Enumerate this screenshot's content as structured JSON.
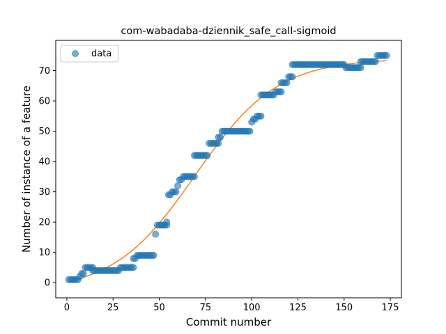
{
  "chart_data": {
    "type": "scatter",
    "title": "com-wabadaba-dziennik_safe_call-sigmoid",
    "xlabel": "Commit number",
    "ylabel": "Number of instance of a feature",
    "xlim": [
      -6,
      181
    ],
    "ylim": [
      -5,
      80
    ],
    "xticks": [
      0,
      25,
      50,
      75,
      100,
      125,
      150,
      175
    ],
    "yticks": [
      0,
      10,
      20,
      30,
      40,
      50,
      60,
      70
    ],
    "grid": false,
    "legend": {
      "placement": "top-left",
      "entries": [
        "data"
      ]
    },
    "colors": {
      "data": "#1f77b4",
      "fit": "#ff7f0e"
    },
    "series": [
      {
        "name": "data",
        "kind": "scatter",
        "steps": [
          {
            "x0": 1,
            "x1": 6,
            "y": 1
          },
          {
            "x0": 7,
            "x1": 7,
            "y": 2
          },
          {
            "x0": 8,
            "x1": 9,
            "y": 3
          },
          {
            "x0": 10,
            "x1": 14,
            "y": 5
          },
          {
            "x0": 14,
            "x1": 28,
            "y": 4
          },
          {
            "x0": 29,
            "x1": 36,
            "y": 5
          },
          {
            "x0": 36,
            "x1": 37,
            "y": 8
          },
          {
            "x0": 38,
            "x1": 47,
            "y": 9
          },
          {
            "x0": 48,
            "x1": 48,
            "y": 16
          },
          {
            "x0": 49,
            "x1": 54,
            "y": 19
          },
          {
            "x0": 54,
            "x1": 54,
            "y": 20
          },
          {
            "x0": 55,
            "x1": 56,
            "y": 29
          },
          {
            "x0": 57,
            "x1": 59,
            "y": 30
          },
          {
            "x0": 60,
            "x1": 60,
            "y": 32
          },
          {
            "x0": 61,
            "x1": 62,
            "y": 34
          },
          {
            "x0": 63,
            "x1": 69,
            "y": 35
          },
          {
            "x0": 69,
            "x1": 76,
            "y": 42
          },
          {
            "x0": 77,
            "x1": 82,
            "y": 46
          },
          {
            "x0": 82,
            "x1": 83,
            "y": 48
          },
          {
            "x0": 84,
            "x1": 99,
            "y": 50
          },
          {
            "x0": 100,
            "x1": 100,
            "y": 53
          },
          {
            "x0": 101,
            "x1": 102,
            "y": 54
          },
          {
            "x0": 103,
            "x1": 105,
            "y": 55
          },
          {
            "x0": 105,
            "x1": 112,
            "y": 62
          },
          {
            "x0": 113,
            "x1": 116,
            "y": 63
          },
          {
            "x0": 116,
            "x1": 119,
            "y": 66
          },
          {
            "x0": 120,
            "x1": 122,
            "y": 68
          },
          {
            "x0": 122,
            "x1": 150,
            "y": 72
          },
          {
            "x0": 151,
            "x1": 159,
            "y": 71
          },
          {
            "x0": 159,
            "x1": 167,
            "y": 73
          },
          {
            "x0": 168,
            "x1": 173,
            "y": 75
          }
        ]
      },
      {
        "name": "",
        "kind": "line",
        "fit": {
          "model": "sigmoid",
          "L": 77,
          "k": 0.045,
          "x0": 69.5,
          "b": -3,
          "x_range": [
            1,
            173
          ]
        }
      }
    ]
  }
}
